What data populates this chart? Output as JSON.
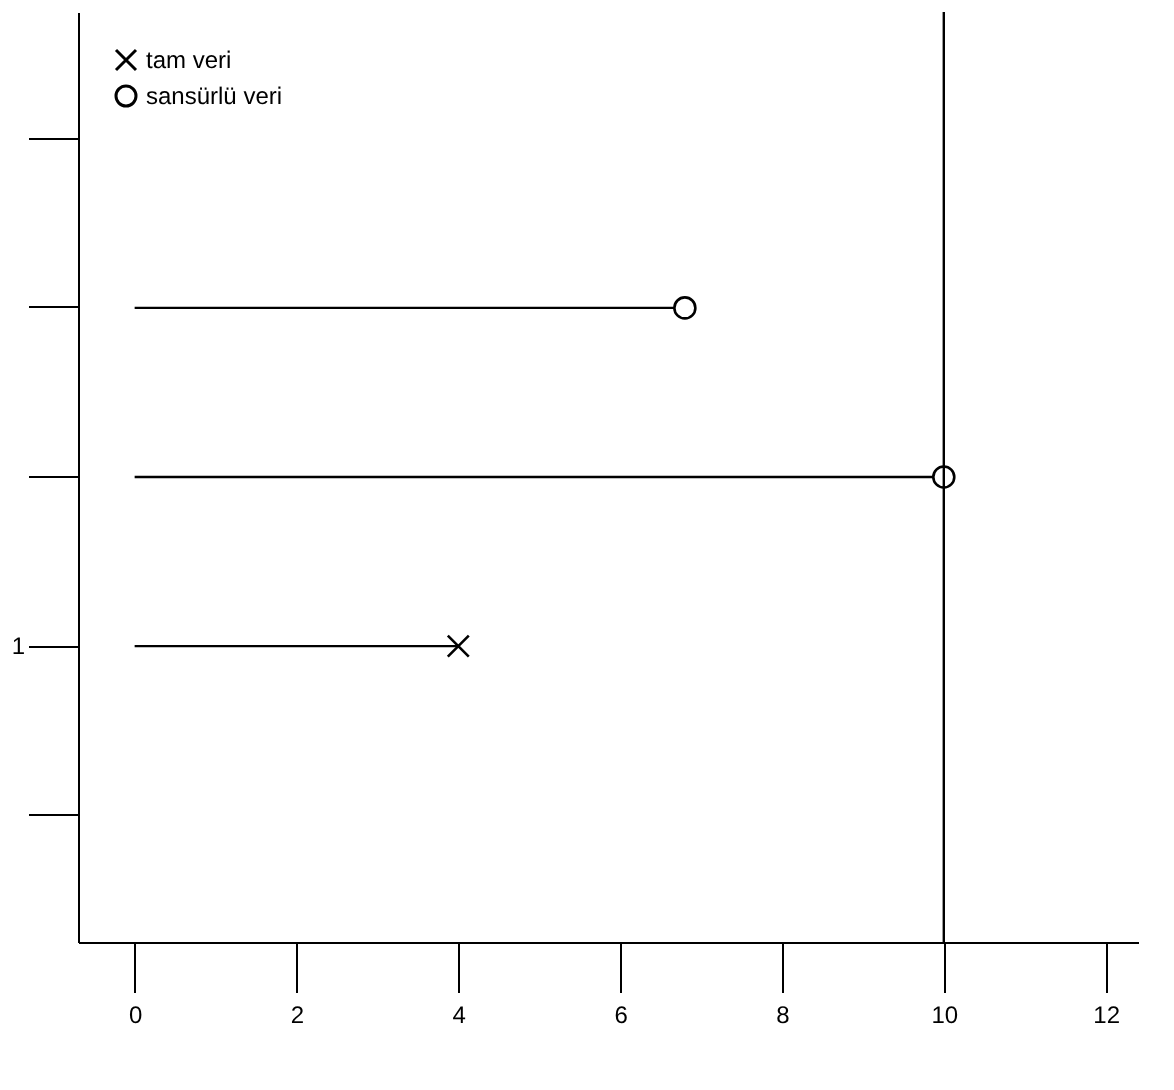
{
  "chart_data": {
    "type": "lollipop",
    "orientation": "horizontal",
    "categories": [
      null,
      null,
      null,
      "1",
      null
    ],
    "series": [
      {
        "name": "tam veri",
        "color": "#000000",
        "marker": "cross",
        "values": [
          null,
          null,
          null,
          4,
          null
        ]
      },
      {
        "name": "sansürlü veri",
        "color": "#000000",
        "marker": "circle",
        "values": [
          null,
          6.8,
          10,
          null,
          null
        ]
      }
    ],
    "ref_lines": [
      {
        "axis": "x",
        "value": 10,
        "color": "#000000"
      }
    ],
    "xlim": [
      -0.7,
      12.4
    ],
    "xticks": [
      0,
      2,
      4,
      6,
      8,
      10,
      12
    ],
    "legend": "top left",
    "grid": false
  }
}
